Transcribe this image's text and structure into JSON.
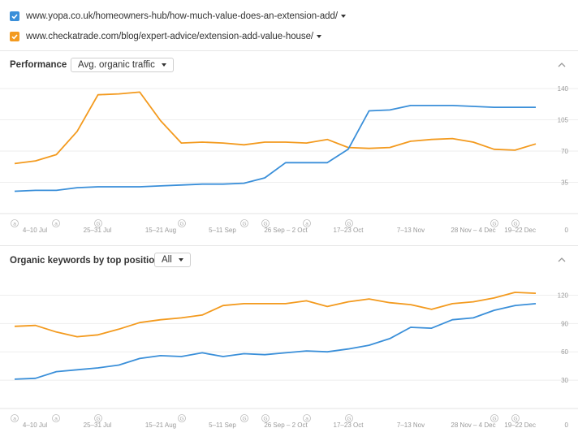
{
  "legend": [
    {
      "url": "www.yopa.co.uk/homeowners-hub/how-much-value-does-an-extension-add/",
      "color": "#3a8fd9",
      "checked": true
    },
    {
      "url": "www.checkatrade.com/blog/expert-advice/extension-add-value-house/",
      "color": "#f39a1e",
      "checked": true
    }
  ],
  "sections": {
    "performance": {
      "title": "Performance",
      "dropdown": "Avg. organic traffic"
    },
    "keywords": {
      "title": "Organic keywords by top position",
      "dropdown": "All"
    }
  },
  "chart_data": [
    {
      "type": "line",
      "title": "Performance",
      "metric": "Avg. organic traffic",
      "x_tick_labels": [
        "4–10 Jul",
        "25–31 Jul",
        "15–21 Aug",
        "5–11 Sep",
        "26 Sep – 2 Oct",
        "17–23 Oct",
        "7–13 Nov",
        "28 Nov – 4 Dec",
        "19–22 Dec"
      ],
      "y_ticks": [
        35,
        70,
        105,
        140
      ],
      "ylim": [
        0,
        140
      ],
      "grid": true,
      "y_axis_side": "right",
      "series": [
        {
          "color": "#f39a1e",
          "values": [
            56,
            59,
            66,
            92,
            133,
            134,
            136,
            104,
            79,
            80,
            79,
            77,
            80,
            80,
            79,
            83,
            74,
            73,
            74,
            81,
            83,
            84,
            80,
            72,
            71,
            78
          ]
        },
        {
          "color": "#3a8fd9",
          "values": [
            25,
            26,
            26,
            29,
            30,
            30,
            30,
            31,
            32,
            33,
            33,
            34,
            40,
            57,
            57,
            57,
            72,
            115,
            116,
            121,
            121,
            121,
            120,
            119,
            119,
            119
          ]
        }
      ],
      "annotations": [
        "a",
        "a",
        "G",
        "G",
        "G",
        "G",
        "a",
        "G",
        "G",
        "G"
      ]
    },
    {
      "type": "line",
      "title": "Organic keywords by top position",
      "filter": "All",
      "x_tick_labels": [
        "4–10 Jul",
        "25–31 Jul",
        "15–21 Aug",
        "5–11 Sep",
        "26 Sep – 2 Oct",
        "17–23 Oct",
        "7–13 Nov",
        "28 Nov – 4 Dec",
        "19–22 Dec"
      ],
      "y_ticks": [
        30,
        60,
        90,
        120
      ],
      "ylim": [
        0,
        135
      ],
      "grid": true,
      "y_axis_side": "right",
      "series": [
        {
          "color": "#f39a1e",
          "values": [
            87,
            88,
            81,
            76,
            78,
            84,
            91,
            94,
            96,
            99,
            109,
            111,
            111,
            111,
            114,
            108,
            113,
            116,
            112,
            110,
            105,
            111,
            113,
            117,
            123,
            122
          ]
        },
        {
          "color": "#3a8fd9",
          "values": [
            31,
            32,
            39,
            41,
            43,
            46,
            53,
            56,
            55,
            59,
            55,
            58,
            57,
            59,
            61,
            60,
            63,
            67,
            74,
            86,
            85,
            94,
            96,
            104,
            109,
            111
          ]
        }
      ],
      "annotations": [
        "a",
        "a",
        "G",
        "G",
        "G",
        "G",
        "a",
        "G",
        "G",
        "G"
      ]
    }
  ]
}
